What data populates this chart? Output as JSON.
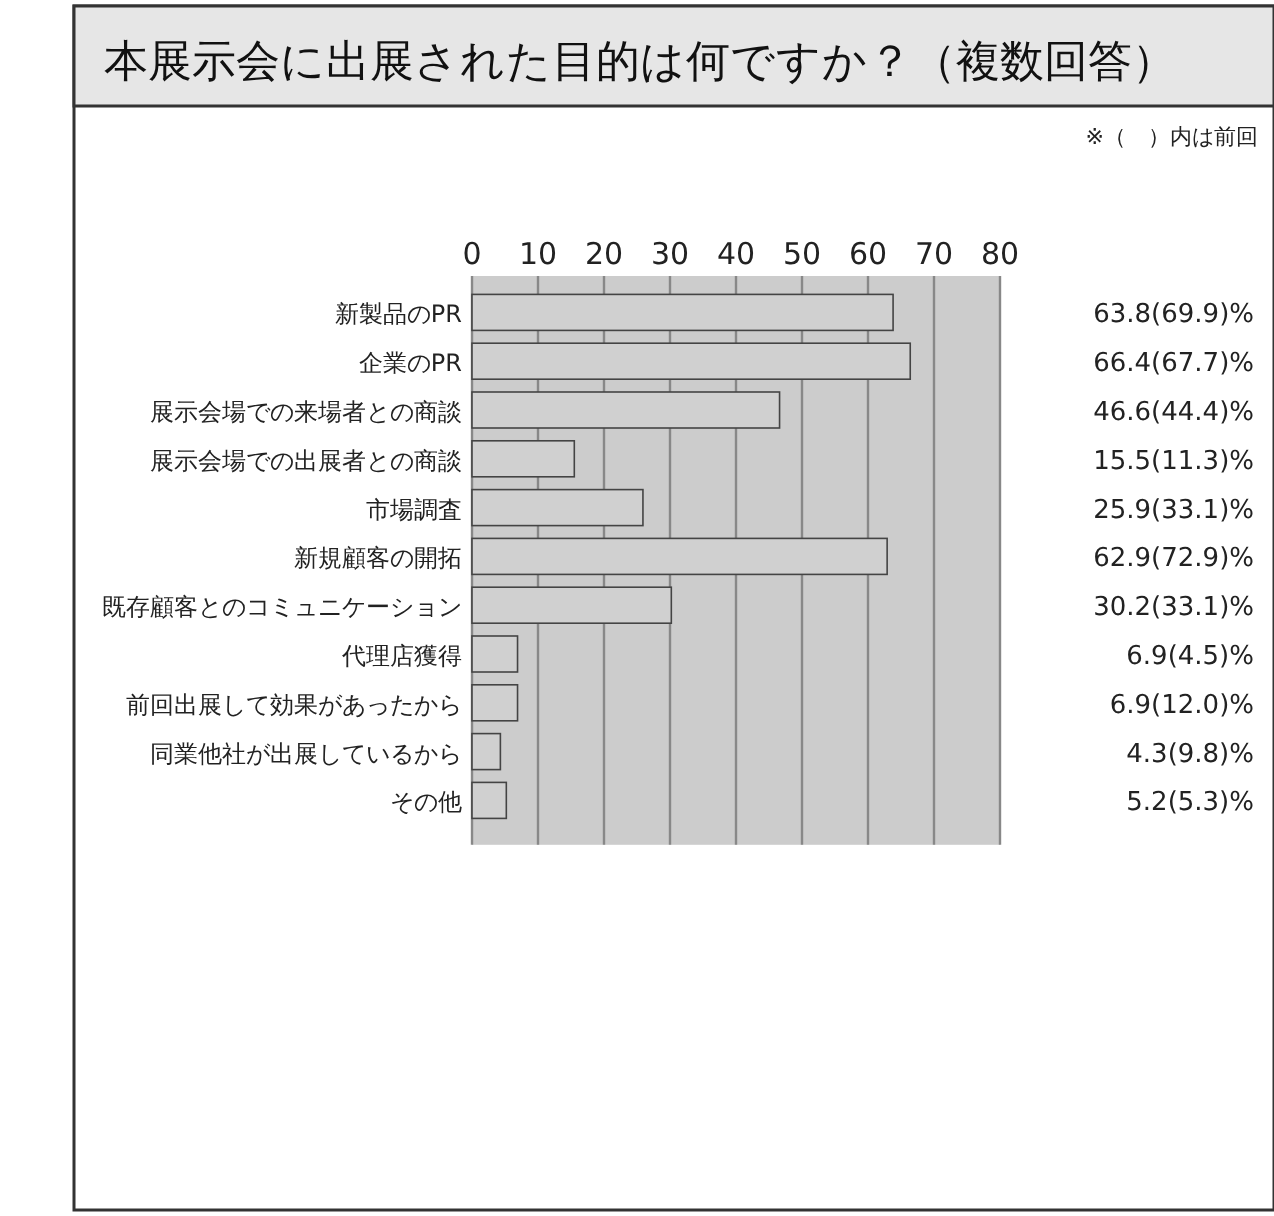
{
  "chart_data": {
    "type": "bar",
    "orientation": "horizontal",
    "title": "本展示会に出展された目的は何ですか？（複数回答）",
    "annotations": [
      "※（　）内は前回"
    ],
    "categories": [
      "新製品のPR",
      "企業のPR",
      "展示会場での来場者との商談",
      "展示会場での出展者との商談",
      "市場調査",
      "新規顧客の開拓",
      "既存顧客とのコミュニケーション",
      "代理店獲得",
      "前回出展して効果があったから",
      "同業他社が出展しているから",
      "その他"
    ],
    "values": [
      63.8,
      66.4,
      46.6,
      15.5,
      25.9,
      62.9,
      30.2,
      6.9,
      6.9,
      4.3,
      5.2
    ],
    "value_labels": [
      "63.8(69.9)%",
      "66.4(67.7)%",
      "46.6(44.4)%",
      "15.5(11.3)%",
      "25.9(33.1)%",
      "62.9(72.9)%",
      "30.2(33.1)%",
      "6.9(4.5)%",
      "6.9(12.0)%",
      "4.3(9.8)%",
      "5.2(5.3)%"
    ],
    "color": "#d0d0d0",
    "xlim": [
      0,
      80
    ],
    "xticks": [
      0,
      10,
      20,
      30,
      40,
      50,
      60,
      70,
      80
    ],
    "grid": "x"
  }
}
